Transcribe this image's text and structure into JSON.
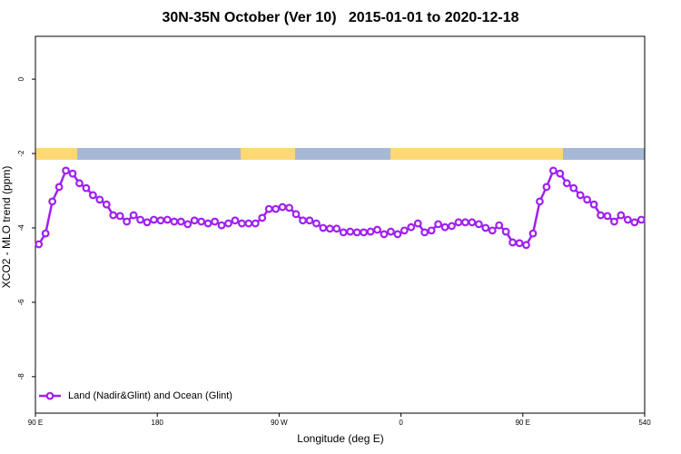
{
  "chart_data": {
    "type": "line",
    "title": "30N-35N October (Ver 10)   2015-01-01 to 2020-12-18",
    "xlabel": "Longitude (deg E)",
    "ylabel": "XCO2 - MLO trend (ppm)",
    "x": [
      92.5,
      97.5,
      102.5,
      107.5,
      112.5,
      117.5,
      122.5,
      127.5,
      132.5,
      137.5,
      142.5,
      147.5,
      152.5,
      157.5,
      162.5,
      167.5,
      172.5,
      177.5,
      182.5,
      187.5,
      192.5,
      197.5,
      202.5,
      207.5,
      212.5,
      217.5,
      222.5,
      227.5,
      232.5,
      237.5,
      242.5,
      247.5,
      252.5,
      257.5,
      262.5,
      267.5,
      272.5,
      277.5,
      282.5,
      287.5,
      292.5,
      297.5,
      302.5,
      307.5,
      312.5,
      317.5,
      322.5,
      327.5,
      332.5,
      337.5,
      342.5,
      347.5,
      352.5,
      357.5,
      362.5,
      367.5,
      372.5,
      377.5,
      382.5,
      387.5,
      392.5,
      397.5,
      402.5,
      407.5,
      412.5,
      417.5,
      422.5,
      427.5,
      432.5,
      437.5,
      442.5,
      447.5,
      452.5,
      457.5,
      462.5,
      467.5,
      472.5,
      477.5,
      482.5,
      487.5,
      492.5,
      497.5,
      502.5,
      507.5,
      512.5,
      517.5,
      522.5,
      527.5,
      532.5,
      537.5
    ],
    "series": [
      {
        "name": "Land (Nadir&Glint) and Ocean (Glint)",
        "color": "#a020f0",
        "values": [
          -4.44,
          -4.15,
          -3.29,
          -2.9,
          -2.46,
          -2.54,
          -2.8,
          -2.93,
          -3.12,
          -3.24,
          -3.37,
          -3.66,
          -3.68,
          -3.83,
          -3.66,
          -3.78,
          -3.85,
          -3.78,
          -3.8,
          -3.78,
          -3.83,
          -3.83,
          -3.9,
          -3.8,
          -3.83,
          -3.88,
          -3.83,
          -3.93,
          -3.88,
          -3.8,
          -3.88,
          -3.88,
          -3.88,
          -3.73,
          -3.49,
          -3.49,
          -3.44,
          -3.46,
          -3.63,
          -3.8,
          -3.8,
          -3.88,
          -4.0,
          -4.02,
          -4.02,
          -4.12,
          -4.1,
          -4.12,
          -4.12,
          -4.1,
          -4.05,
          -4.17,
          -4.1,
          -4.17,
          -4.07,
          -3.98,
          -3.88,
          -4.12,
          -4.07,
          -3.9,
          -3.98,
          -3.95,
          -3.85,
          -3.85,
          -3.85,
          -3.9,
          -4.0,
          -4.07,
          -3.93,
          -4.1,
          -4.39,
          -4.41,
          -4.46,
          -4.15,
          -3.29,
          -2.9,
          -2.46,
          -2.54,
          -2.8,
          -2.93,
          -3.12,
          -3.24,
          -3.37,
          -3.66,
          -3.68,
          -3.83,
          -3.66,
          -3.78,
          -3.85,
          -3.78
        ]
      }
    ],
    "xlim": [
      90,
      540
    ],
    "xticks": [
      {
        "value": 90,
        "label": "90 E"
      },
      180,
      {
        "value": 270,
        "label": "90 W"
      },
      {
        "value": 360,
        "label": "0"
      },
      {
        "value": 450,
        "label": "90 E"
      },
      540
    ],
    "ylim": [
      -8.98,
      1.15
    ],
    "yticks": [
      -8,
      -6,
      -4,
      -2,
      0
    ],
    "grid": false,
    "legend": "bottom-left"
  }
}
